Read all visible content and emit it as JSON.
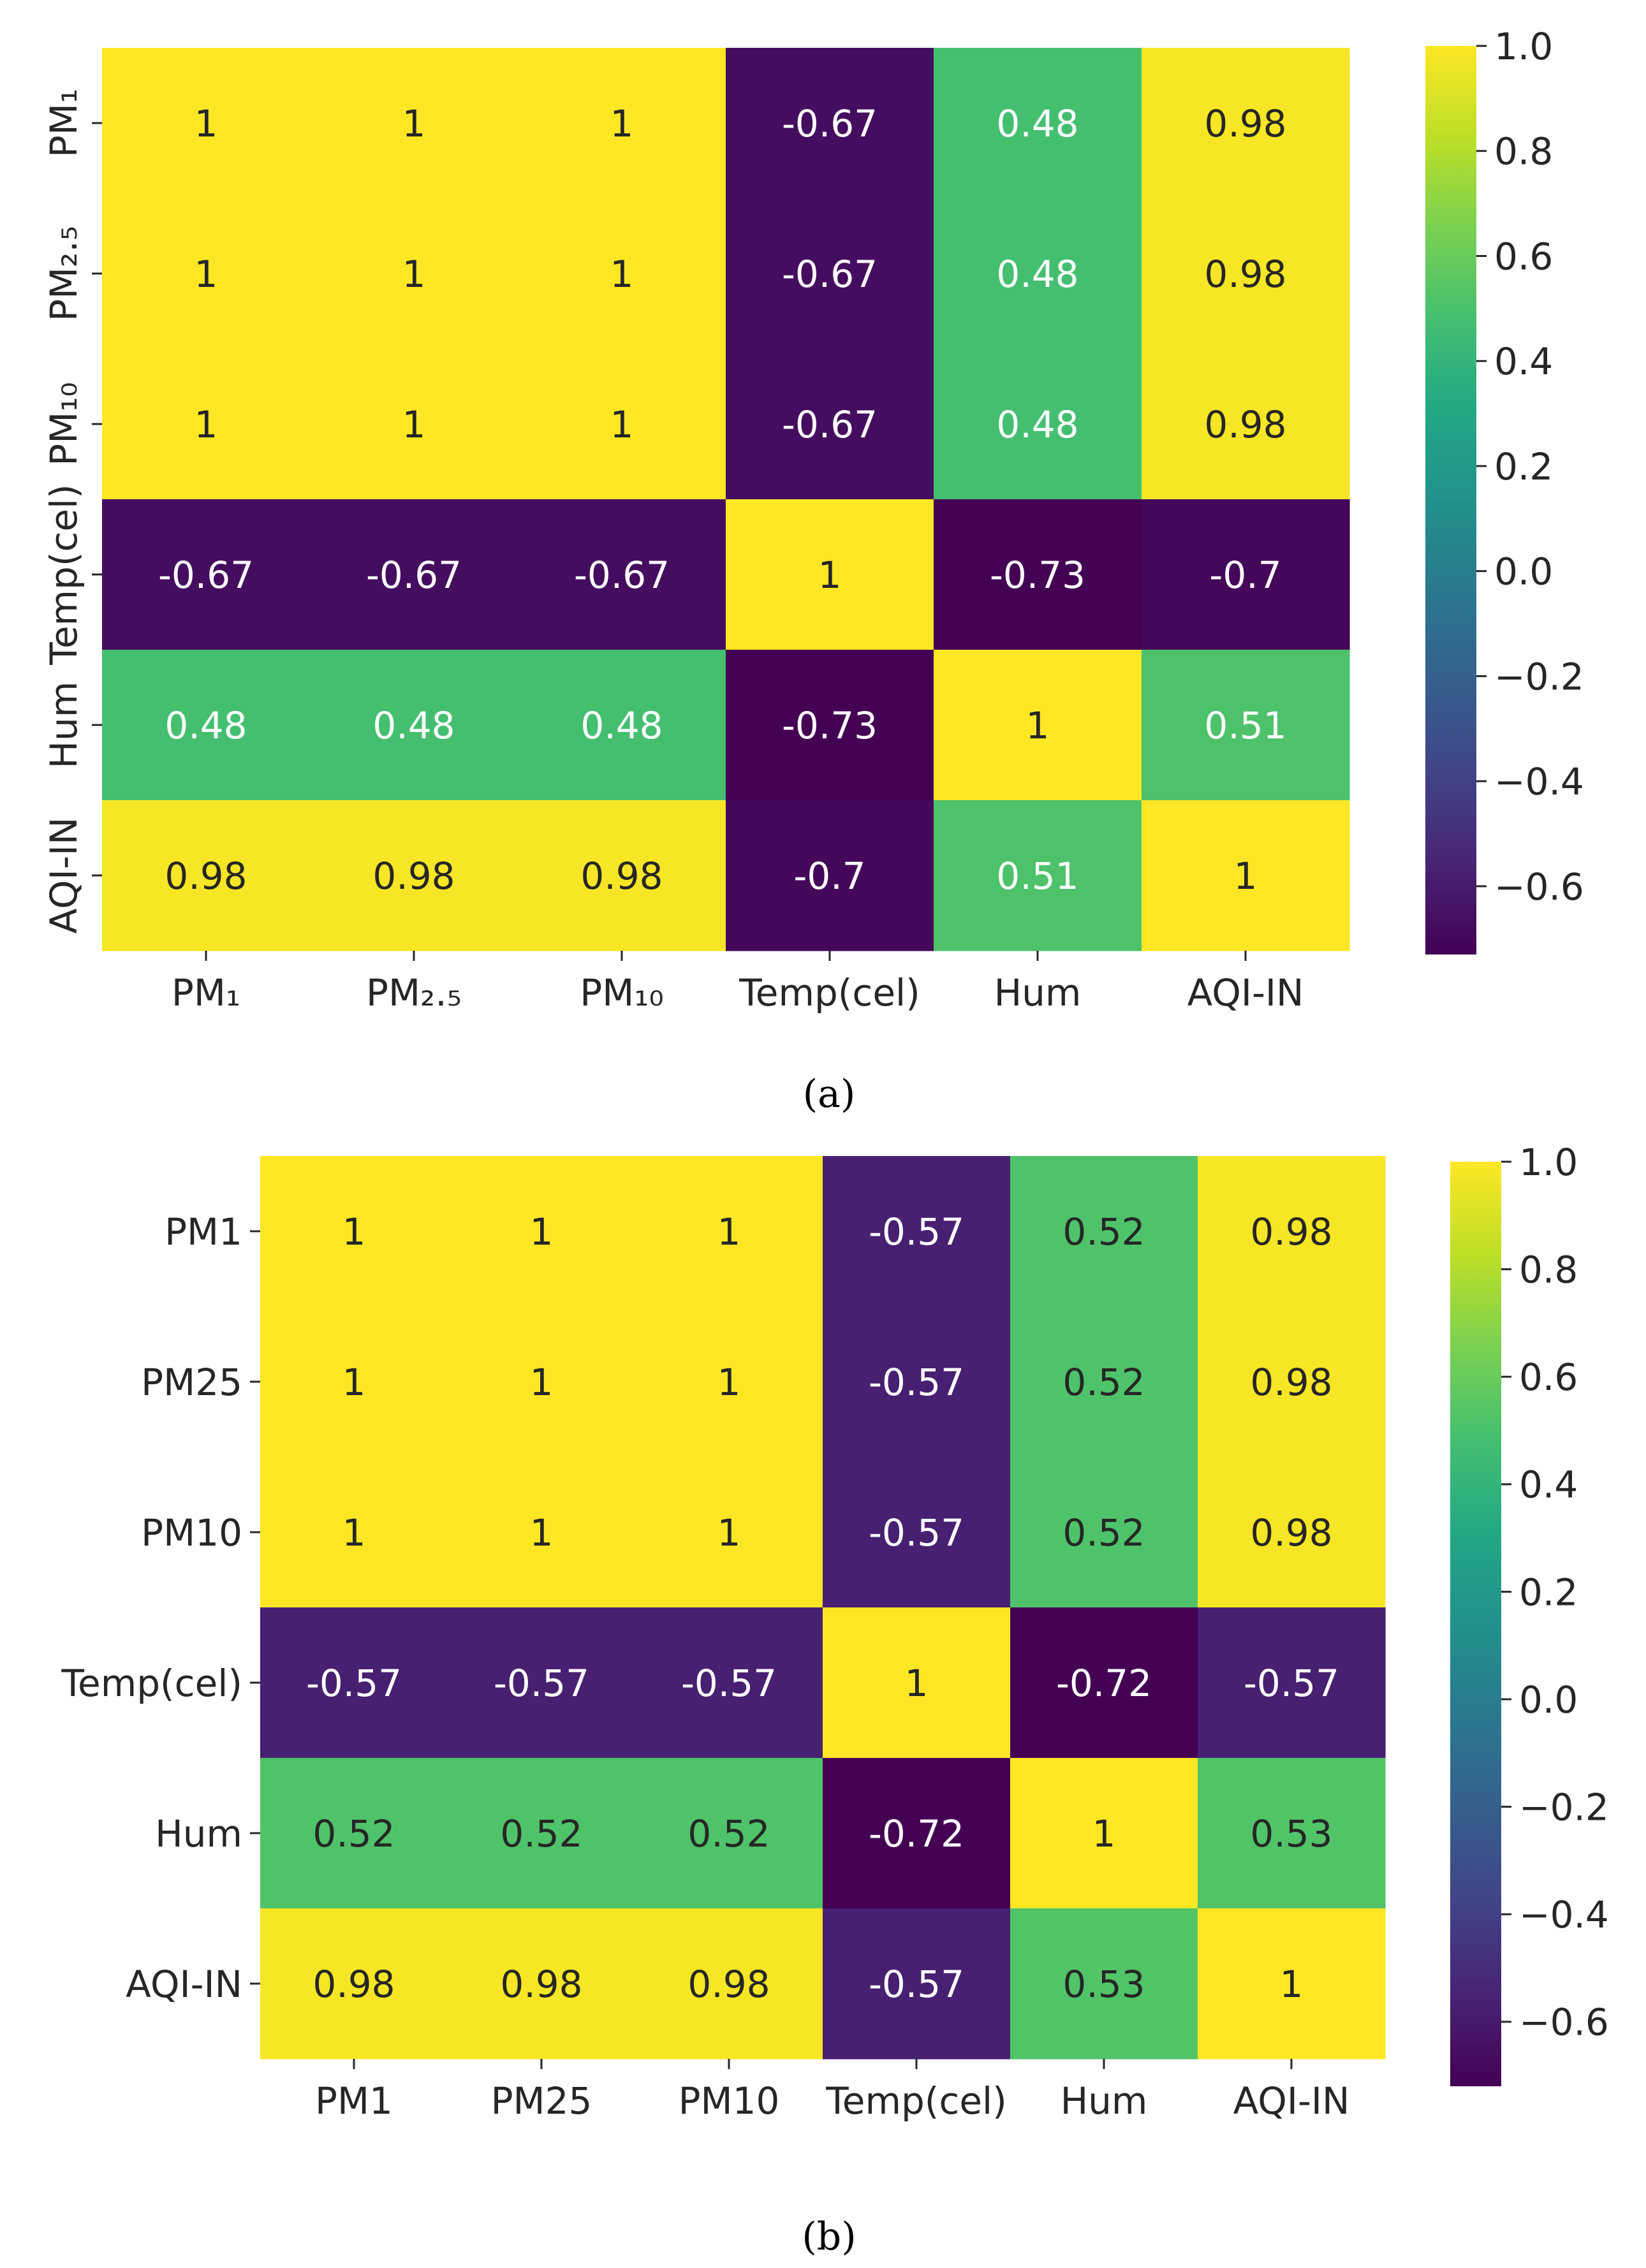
{
  "figure": {
    "captions": [
      "(a)",
      "(b)"
    ]
  },
  "chart_data": [
    {
      "type": "heatmap",
      "caption": "(a)",
      "colormap": "viridis",
      "xlabels": [
        "PM₁",
        "PM₂.₅",
        "PM₁₀",
        "Temp(cel)",
        "Hum",
        "AQI-IN"
      ],
      "ylabels": [
        "PM₁",
        "PM₂.₅",
        "PM₁₀",
        "Temp(cel)",
        "Hum",
        "AQI-IN"
      ],
      "cells": [
        [
          "1",
          "1",
          "1",
          "-0.67",
          "0.48",
          "0.98"
        ],
        [
          "1",
          "1",
          "1",
          "-0.67",
          "0.48",
          "0.98"
        ],
        [
          "1",
          "1",
          "1",
          "-0.67",
          "0.48",
          "0.98"
        ],
        [
          "-0.67",
          "-0.67",
          "-0.67",
          "1",
          "-0.73",
          "-0.7"
        ],
        [
          "0.48",
          "0.48",
          "0.48",
          "-0.73",
          "1",
          "0.51"
        ],
        [
          "0.98",
          "0.98",
          "0.98",
          "-0.7",
          "0.51",
          "1"
        ]
      ],
      "colorbar": {
        "range": [
          -0.73,
          1.0
        ],
        "ticks": [
          1.0,
          0.8,
          0.6,
          0.4,
          0.2,
          0.0,
          -0.2,
          -0.4,
          -0.6
        ],
        "tick_labels": [
          "1.0",
          "0.8",
          "0.6",
          "0.4",
          "0.2",
          "0.0",
          "−0.2",
          "−0.4",
          "−0.6"
        ]
      }
    },
    {
      "type": "heatmap",
      "caption": "(b)",
      "colormap": "viridis",
      "xlabels": [
        "PM1",
        "PM25",
        "PM10",
        "Temp(cel)",
        "Hum",
        "AQI-IN"
      ],
      "ylabels": [
        "PM1",
        "PM25",
        "PM10",
        "Temp(cel)",
        "Hum",
        "AQI-IN"
      ],
      "cells": [
        [
          "1",
          "1",
          "1",
          "-0.57",
          "0.52",
          "0.98"
        ],
        [
          "1",
          "1",
          "1",
          "-0.57",
          "0.52",
          "0.98"
        ],
        [
          "1",
          "1",
          "1",
          "-0.57",
          "0.52",
          "0.98"
        ],
        [
          "-0.57",
          "-0.57",
          "-0.57",
          "1",
          "-0.72",
          "-0.57"
        ],
        [
          "0.52",
          "0.52",
          "0.52",
          "-0.72",
          "1",
          "0.53"
        ],
        [
          "0.98",
          "0.98",
          "0.98",
          "-0.57",
          "0.53",
          "1"
        ]
      ],
      "colorbar": {
        "range": [
          -0.72,
          1.0
        ],
        "ticks": [
          1.0,
          0.8,
          0.6,
          0.4,
          0.2,
          0.0,
          -0.2,
          -0.4,
          -0.6
        ],
        "tick_labels": [
          "1.0",
          "0.8",
          "0.6",
          "0.4",
          "0.2",
          "0.0",
          "−0.2",
          "−0.4",
          "−0.6"
        ]
      }
    }
  ]
}
